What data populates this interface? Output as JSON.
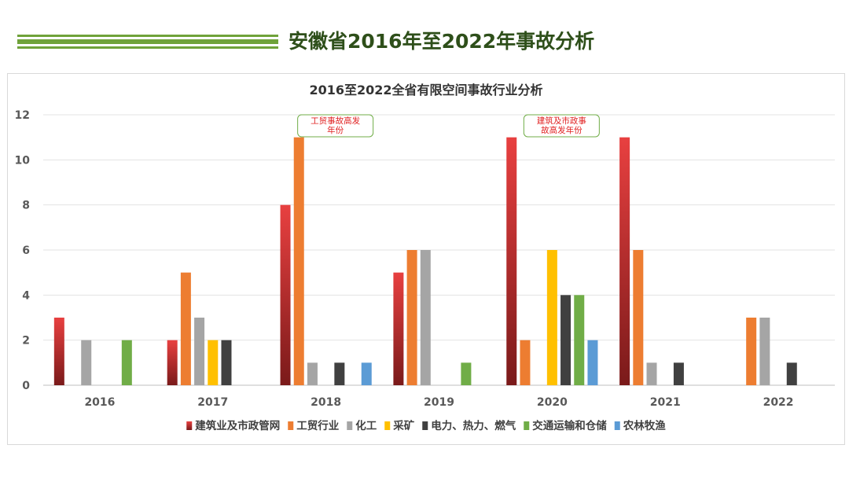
{
  "page": {
    "title": "安徽省2016年至2022年事故分析",
    "accent_color": "#6fa23a",
    "title_color": "#2e4f1a"
  },
  "chart_data": {
    "type": "bar",
    "title": "2016至2022全省有限空间事故行业分析",
    "categories": [
      "2016",
      "2017",
      "2018",
      "2019",
      "2020",
      "2021",
      "2022"
    ],
    "ylim": [
      0,
      12
    ],
    "yticks": [
      0,
      2,
      4,
      6,
      8,
      10,
      12
    ],
    "grid": true,
    "legend_position": "bottom",
    "xlabel": "",
    "ylabel": "",
    "series": [
      {
        "name": "建筑业及市政管网",
        "color": "#e84040",
        "gradient_to": "#7a1a1a",
        "values": [
          3,
          2,
          8,
          5,
          11,
          11,
          0
        ]
      },
      {
        "name": "工贸行业",
        "color": "#ed7d31",
        "values": [
          0,
          5,
          11,
          6,
          2,
          6,
          3
        ]
      },
      {
        "name": "化工",
        "color": "#a5a5a5",
        "values": [
          2,
          3,
          1,
          6,
          0,
          1,
          3
        ]
      },
      {
        "name": "采矿",
        "color": "#ffc000",
        "values": [
          0,
          2,
          0,
          0,
          6,
          0,
          0
        ]
      },
      {
        "name": "电力、热力、燃气",
        "color": "#404040",
        "values": [
          0,
          2,
          1,
          0,
          4,
          1,
          1
        ]
      },
      {
        "name": "交通运输和仓储",
        "color": "#70ad47",
        "values": [
          2,
          0,
          0,
          1,
          4,
          0,
          0
        ]
      },
      {
        "name": "农林牧渔",
        "color": "#5b9bd5",
        "values": [
          0,
          0,
          1,
          0,
          2,
          0,
          0
        ]
      }
    ],
    "annotations": [
      {
        "category": "2018",
        "text_lines": [
          "工贸事故高发",
          "年份"
        ],
        "text_color": "#e02020",
        "border_color": "#70ad47"
      },
      {
        "category": "2020",
        "text_lines": [
          "建筑及市政事",
          "故高发年份"
        ],
        "text_color": "#e02020",
        "border_color": "#70ad47"
      }
    ]
  }
}
